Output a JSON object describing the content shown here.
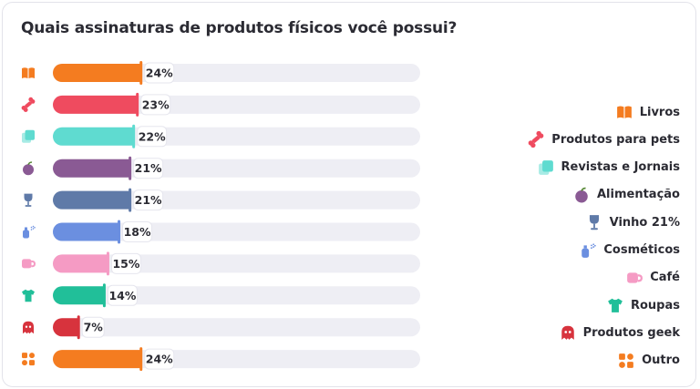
{
  "title": "Quais assinaturas de produtos físicos você possui?",
  "chart_data": {
    "type": "bar",
    "orientation": "horizontal",
    "title": "Quais assinaturas de produtos físicos você possui?",
    "unit": "%",
    "xlim": [
      0,
      100
    ],
    "categories": [
      "Livros",
      "Produtos para pets",
      "Revistas e Jornais",
      "Alimentação",
      "Vinho",
      "Cosméticos",
      "Café",
      "Roupas",
      "Produtos geek",
      "Outro"
    ],
    "values": [
      24,
      23,
      22,
      21,
      21,
      18,
      15,
      14,
      7,
      24
    ],
    "value_labels": [
      "24%",
      "23%",
      "22%",
      "21%",
      "21%",
      "18%",
      "15%",
      "14%",
      "7%",
      "24%"
    ],
    "colors": [
      "#f47c20",
      "#ef4b5f",
      "#5fdbd0",
      "#8a5a94",
      "#5f7aa8",
      "#6b8fe0",
      "#f59bc4",
      "#21bf99",
      "#d7333d",
      "#f47c20"
    ],
    "icons": [
      "book-icon",
      "bone-icon",
      "magazine-icon",
      "apple-icon",
      "wine-glass-icon",
      "perfume-icon",
      "mug-icon",
      "shirt-icon",
      "ghost-icon",
      "grid-icon"
    ],
    "track_color": "#eeeef4",
    "legend": {
      "placement": "right",
      "entries": [
        "Livros",
        "Produtos para pets",
        "Revistas e Jornais",
        "Alimentação",
        "Vinho 21%",
        "Cosméticos",
        "Café",
        "Roupas",
        "Produtos geek",
        "Outro"
      ]
    },
    "grid": false
  }
}
